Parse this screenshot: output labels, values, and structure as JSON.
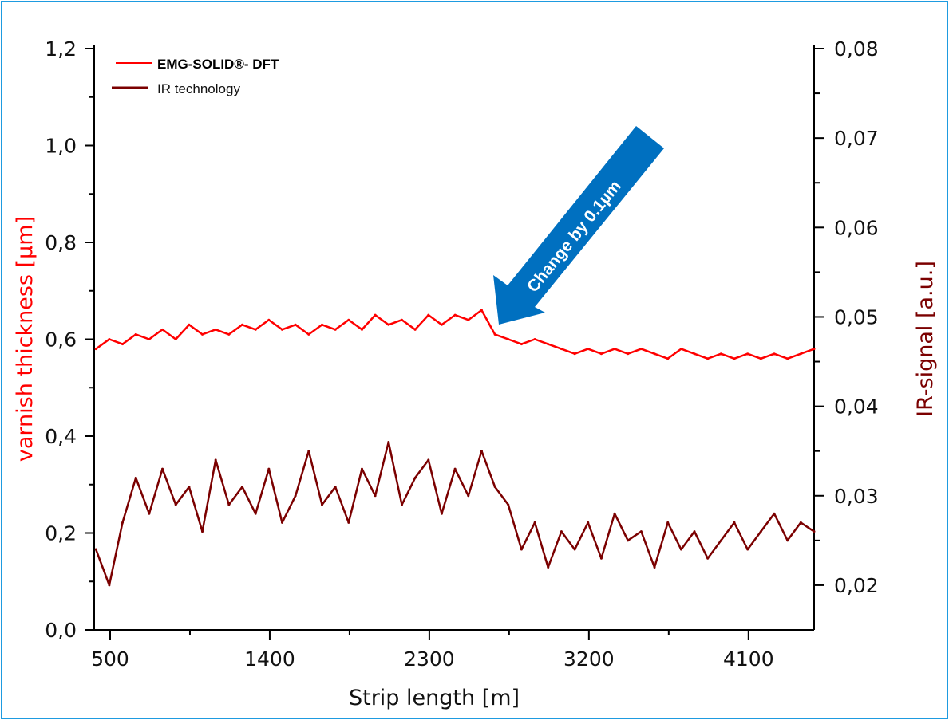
{
  "chart_data": {
    "type": "line",
    "xlabel": "Strip length [m]",
    "ylabel_left": "varnish thickness [µm]",
    "ylabel_right": "IR-signal [a.u.]",
    "xlim": [
      410,
      4470
    ],
    "ylim_left": [
      0,
      1.2
    ],
    "ylim_right": [
      0.015,
      0.08
    ],
    "x_ticks": [
      "500",
      "1400",
      "2300",
      "3200",
      "4100"
    ],
    "y_left_ticks": [
      "0,0",
      "0,2",
      "0,4",
      "0,6",
      "0,8",
      "1,0",
      "1,2"
    ],
    "y_right_ticks": [
      "0,02",
      "0,03",
      "0,04",
      "0,05",
      "0,06",
      "0,07",
      "0,08"
    ],
    "grid": false,
    "legend_position": "top-left",
    "annotation": "Change by 0.1µm",
    "annotation_color": "#0070c0",
    "x": [
      420,
      495,
      570,
      645,
      720,
      795,
      870,
      945,
      1020,
      1095,
      1170,
      1245,
      1320,
      1395,
      1470,
      1545,
      1620,
      1695,
      1770,
      1845,
      1920,
      1995,
      2070,
      2145,
      2220,
      2295,
      2370,
      2445,
      2520,
      2595,
      2670,
      2745,
      2820,
      2895,
      2970,
      3045,
      3120,
      3195,
      3270,
      3345,
      3420,
      3495,
      3570,
      3645,
      3720,
      3795,
      3870,
      3945,
      4020,
      4095,
      4170,
      4245,
      4320,
      4395,
      4470
    ],
    "series": [
      {
        "name": "EMG-SOLID®- DFT",
        "axis": "left",
        "color": "#ff0000",
        "values": [
          0.58,
          0.6,
          0.59,
          0.61,
          0.6,
          0.62,
          0.6,
          0.63,
          0.61,
          0.62,
          0.61,
          0.63,
          0.62,
          0.64,
          0.62,
          0.63,
          0.61,
          0.63,
          0.62,
          0.64,
          0.62,
          0.65,
          0.63,
          0.64,
          0.62,
          0.65,
          0.63,
          0.65,
          0.64,
          0.66,
          0.61,
          0.6,
          0.59,
          0.6,
          0.59,
          0.58,
          0.57,
          0.58,
          0.57,
          0.58,
          0.57,
          0.58,
          0.57,
          0.56,
          0.58,
          0.57,
          0.56,
          0.57,
          0.56,
          0.57,
          0.56,
          0.57,
          0.56,
          0.57,
          0.58
        ]
      },
      {
        "name": "IR technology",
        "axis": "right",
        "color": "#7b0000",
        "values": [
          0.024,
          0.02,
          0.027,
          0.032,
          0.028,
          0.033,
          0.029,
          0.031,
          0.026,
          0.034,
          0.029,
          0.031,
          0.028,
          0.033,
          0.027,
          0.03,
          0.035,
          0.029,
          0.031,
          0.027,
          0.033,
          0.03,
          0.036,
          0.029,
          0.032,
          0.034,
          0.028,
          0.033,
          0.03,
          0.035,
          0.031,
          0.029,
          0.024,
          0.027,
          0.022,
          0.026,
          0.024,
          0.027,
          0.023,
          0.028,
          0.025,
          0.026,
          0.022,
          0.027,
          0.024,
          0.026,
          0.023,
          0.025,
          0.027,
          0.024,
          0.026,
          0.028,
          0.025,
          0.027,
          0.026
        ]
      }
    ]
  }
}
